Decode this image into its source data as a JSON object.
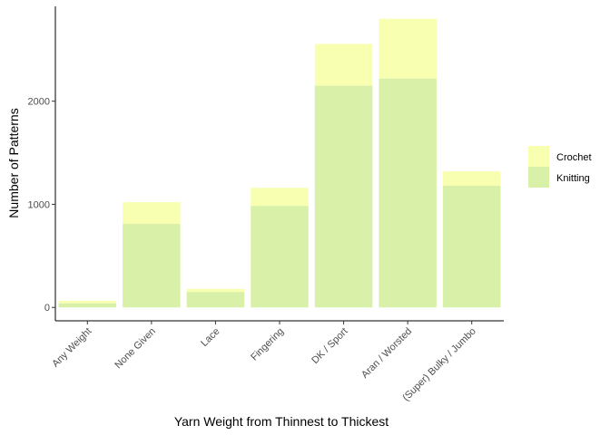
{
  "chart_data": {
    "type": "bar",
    "stacked": true,
    "categories": [
      "Any Weight",
      "None Given",
      "Lace",
      "Fingering",
      "DK / Sport",
      "Aran / Worsted",
      "(Super) Bulky / Jumbo"
    ],
    "series": [
      {
        "name": "Knitting",
        "values": [
          40,
          810,
          150,
          985,
          2150,
          2220,
          1180
        ],
        "color": "#d8f0a8"
      },
      {
        "name": "Crochet",
        "values": [
          25,
          210,
          30,
          175,
          405,
          580,
          140
        ],
        "color": "#f8ffb0"
      }
    ],
    "legend_order": [
      "Crochet",
      "Knitting"
    ],
    "xlabel": "Yarn Weight from Thinnest to Thickest",
    "ylabel": "Number of Patterns",
    "ylim": [
      -130,
      2920
    ],
    "yticks": [
      0,
      1000,
      2000
    ],
    "ytick_labels": [
      "0",
      "1000",
      "2000"
    ],
    "grid": false,
    "legend_position": "right"
  }
}
